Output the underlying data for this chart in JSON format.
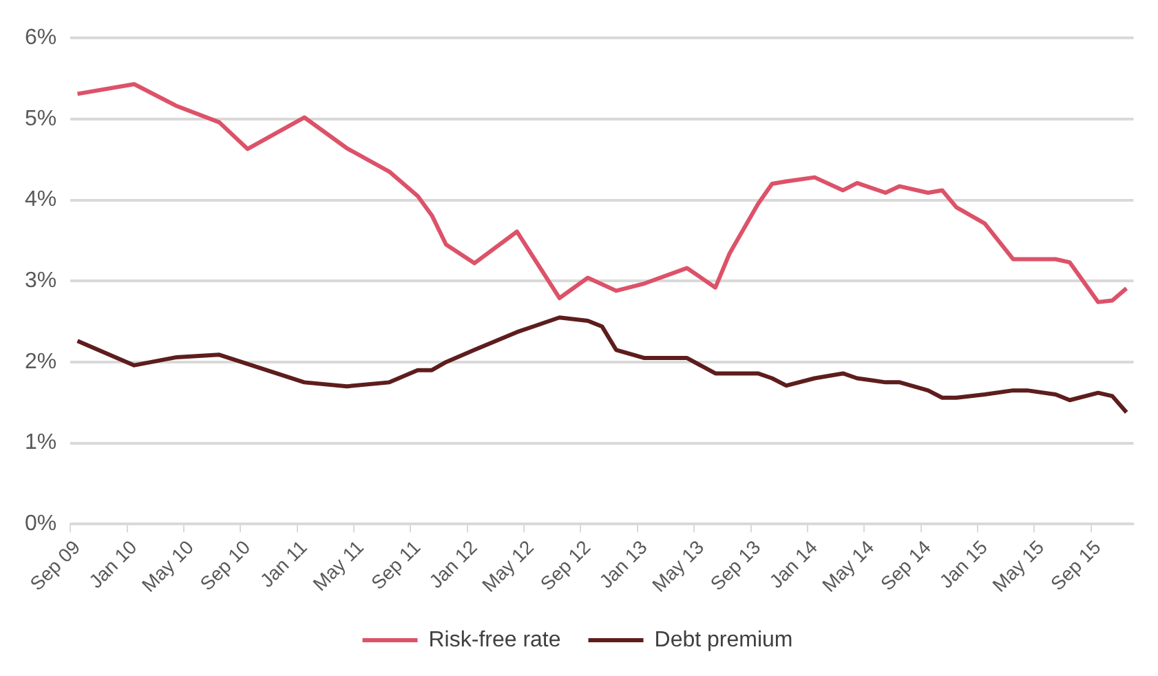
{
  "chart_data": {
    "type": "line",
    "categories": [
      "Sep 09",
      null,
      null,
      null,
      "Jan 10",
      null,
      null,
      null,
      "May 10",
      null,
      null,
      null,
      "Sep 10",
      null,
      null,
      null,
      "Jan 11",
      null,
      null,
      null,
      "May 11",
      null,
      null,
      null,
      "Sep 11",
      null,
      null,
      null,
      "Jan 12",
      null,
      null,
      null,
      "May 12",
      null,
      null,
      null,
      "Sep 12",
      null,
      null,
      null,
      "Jan 13",
      null,
      null,
      null,
      "May 13",
      null,
      null,
      null,
      "Sep 13",
      null,
      null,
      null,
      "Jan 14",
      null,
      null,
      null,
      "May 14",
      null,
      null,
      null,
      "Sep 14",
      null,
      null,
      null,
      "Jan 15",
      null,
      null,
      null,
      "May 15",
      null,
      null,
      null,
      "Sep 15",
      null,
      null
    ],
    "series": [
      {
        "name": "Risk-free rate",
        "color": "#dc5269",
        "values": [
          5.31,
          null,
          null,
          null,
          5.43,
          null,
          null,
          5.16,
          null,
          null,
          4.96,
          null,
          4.63,
          null,
          null,
          null,
          5.02,
          null,
          null,
          4.64,
          null,
          null,
          4.35,
          null,
          4.05,
          3.81,
          3.45,
          null,
          3.22,
          null,
          null,
          3.61,
          null,
          null,
          2.79,
          null,
          3.04,
          null,
          2.88,
          null,
          2.97,
          null,
          null,
          3.16,
          null,
          2.92,
          3.34,
          null,
          3.95,
          4.2,
          4.23,
          null,
          4.28,
          null,
          4.12,
          4.21,
          null,
          4.09,
          4.17,
          null,
          4.09,
          4.12,
          3.91,
          null,
          3.71,
          null,
          3.27,
          null,
          null,
          3.27,
          3.23,
          null,
          2.74,
          2.76,
          2.91
        ]
      },
      {
        "name": "Debt premium",
        "color": "#5e1d1d",
        "values": [
          2.26,
          null,
          null,
          null,
          1.96,
          null,
          null,
          2.06,
          null,
          null,
          2.09,
          null,
          null,
          null,
          null,
          null,
          1.75,
          null,
          null,
          1.7,
          null,
          null,
          1.75,
          null,
          1.9,
          1.9,
          2.0,
          null,
          2.15,
          null,
          null,
          2.37,
          null,
          null,
          2.55,
          null,
          2.51,
          2.44,
          2.15,
          null,
          2.05,
          null,
          null,
          2.05,
          null,
          1.86,
          null,
          null,
          1.86,
          1.8,
          1.71,
          null,
          1.8,
          null,
          1.86,
          1.8,
          null,
          1.75,
          1.75,
          null,
          1.65,
          1.56,
          1.56,
          null,
          1.6,
          null,
          1.65,
          1.65,
          null,
          1.6,
          1.53,
          null,
          1.62,
          1.58,
          1.38
        ]
      }
    ],
    "ylim": [
      0,
      6
    ],
    "yticks": [
      {
        "value": 0,
        "label": "0%"
      },
      {
        "value": 1,
        "label": "1%"
      },
      {
        "value": 2,
        "label": "2%"
      },
      {
        "value": 3,
        "label": "3%"
      },
      {
        "value": 4,
        "label": "4%"
      },
      {
        "value": 5,
        "label": "5%"
      },
      {
        "value": 6,
        "label": "6%"
      }
    ],
    "grid": "y",
    "legend": "bottom",
    "marker": "none",
    "line_style": "solid"
  }
}
